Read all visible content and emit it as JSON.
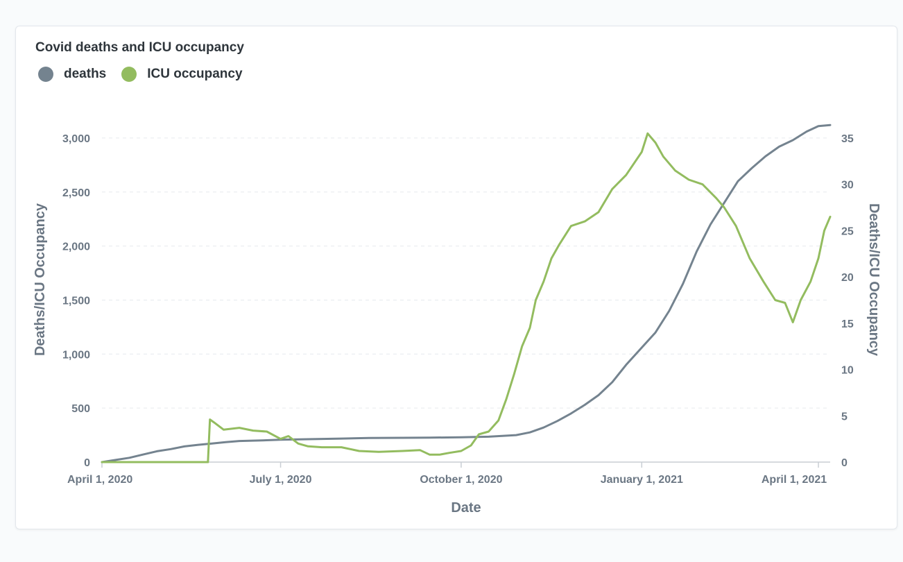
{
  "chart_data": {
    "type": "line",
    "title": "Covid deaths and ICU occupancy",
    "xlabel": "Date",
    "ylabel_left": "Deaths/ICU Occupancy",
    "ylabel_right": "Deaths/ICU Occupancy",
    "x_range": [
      "2020-04-01",
      "2021-04-07"
    ],
    "x_ticks": [
      {
        "date": "2020-04-01",
        "label": "April 1, 2020"
      },
      {
        "date": "2020-07-01",
        "label": "July 1, 2020"
      },
      {
        "date": "2020-10-01",
        "label": "October 1, 2020"
      },
      {
        "date": "2021-01-01",
        "label": "January 1, 2021"
      },
      {
        "date": "2021-04-01",
        "label": "April 1, 2021"
      }
    ],
    "y_left": {
      "range": [
        0,
        3250
      ],
      "ticks": [
        0,
        500,
        1000,
        1500,
        2000,
        2500,
        3000
      ],
      "labels": [
        "0",
        "500",
        "1,000",
        "1,500",
        "2,000",
        "2,500",
        "3,000"
      ]
    },
    "y_right": {
      "range": [
        0,
        37.92
      ],
      "ticks": [
        0,
        5,
        10,
        15,
        20,
        25,
        30,
        35
      ],
      "labels": [
        "0",
        "5",
        "10",
        "15",
        "20",
        "25",
        "30",
        "35"
      ]
    },
    "grid": true,
    "legend_position": "top-left",
    "series": [
      {
        "name": "deaths",
        "axis": "left",
        "color": "#74838f",
        "points": [
          [
            "2020-04-01",
            0
          ],
          [
            "2020-04-08",
            20
          ],
          [
            "2020-04-15",
            40
          ],
          [
            "2020-04-22",
            70
          ],
          [
            "2020-04-29",
            100
          ],
          [
            "2020-05-06",
            120
          ],
          [
            "2020-05-13",
            145
          ],
          [
            "2020-05-20",
            160
          ],
          [
            "2020-05-27",
            172
          ],
          [
            "2020-06-03",
            185
          ],
          [
            "2020-06-10",
            195
          ],
          [
            "2020-06-20",
            200
          ],
          [
            "2020-07-01",
            207
          ],
          [
            "2020-07-15",
            212
          ],
          [
            "2020-08-01",
            218
          ],
          [
            "2020-08-15",
            223
          ],
          [
            "2020-09-01",
            225
          ],
          [
            "2020-09-15",
            227
          ],
          [
            "2020-10-01",
            229
          ],
          [
            "2020-10-15",
            235
          ],
          [
            "2020-10-29",
            250
          ],
          [
            "2020-11-05",
            275
          ],
          [
            "2020-11-12",
            320
          ],
          [
            "2020-11-19",
            380
          ],
          [
            "2020-11-26",
            450
          ],
          [
            "2020-12-03",
            530
          ],
          [
            "2020-12-10",
            620
          ],
          [
            "2020-12-17",
            740
          ],
          [
            "2020-12-24",
            900
          ],
          [
            "2021-01-01",
            1060
          ],
          [
            "2021-01-08",
            1200
          ],
          [
            "2021-01-15",
            1400
          ],
          [
            "2021-01-22",
            1650
          ],
          [
            "2021-01-29",
            1950
          ],
          [
            "2021-02-05",
            2200
          ],
          [
            "2021-02-12",
            2400
          ],
          [
            "2021-02-19",
            2600
          ],
          [
            "2021-02-26",
            2720
          ],
          [
            "2021-03-05",
            2830
          ],
          [
            "2021-03-12",
            2920
          ],
          [
            "2021-03-19",
            2980
          ],
          [
            "2021-03-26",
            3060
          ],
          [
            "2021-04-01",
            3110
          ],
          [
            "2021-04-07",
            3120
          ]
        ]
      },
      {
        "name": "ICU occupancy",
        "axis": "right",
        "color": "#93bc5f",
        "points": [
          [
            "2020-04-01",
            0
          ],
          [
            "2020-05-25",
            0
          ],
          [
            "2020-05-26",
            4.6
          ],
          [
            "2020-05-28",
            4.3
          ],
          [
            "2020-06-02",
            3.5
          ],
          [
            "2020-06-10",
            3.7
          ],
          [
            "2020-06-17",
            3.4
          ],
          [
            "2020-06-24",
            3.3
          ],
          [
            "2020-07-01",
            2.5
          ],
          [
            "2020-07-05",
            2.8
          ],
          [
            "2020-07-10",
            2.0
          ],
          [
            "2020-07-15",
            1.7
          ],
          [
            "2020-07-22",
            1.6
          ],
          [
            "2020-08-01",
            1.6
          ],
          [
            "2020-08-10",
            1.2
          ],
          [
            "2020-08-20",
            1.1
          ],
          [
            "2020-09-01",
            1.2
          ],
          [
            "2020-09-10",
            1.3
          ],
          [
            "2020-09-15",
            0.8
          ],
          [
            "2020-09-20",
            0.8
          ],
          [
            "2020-09-25",
            1.0
          ],
          [
            "2020-10-01",
            1.2
          ],
          [
            "2020-10-06",
            1.8
          ],
          [
            "2020-10-10",
            3.0
          ],
          [
            "2020-10-15",
            3.3
          ],
          [
            "2020-10-20",
            4.5
          ],
          [
            "2020-10-24",
            6.8
          ],
          [
            "2020-10-28",
            9.5
          ],
          [
            "2020-11-01",
            12.5
          ],
          [
            "2020-11-05",
            14.5
          ],
          [
            "2020-11-08",
            17.5
          ],
          [
            "2020-11-12",
            19.5
          ],
          [
            "2020-11-16",
            22.0
          ],
          [
            "2020-11-20",
            23.5
          ],
          [
            "2020-11-26",
            25.5
          ],
          [
            "2020-12-03",
            26.0
          ],
          [
            "2020-12-10",
            27.0
          ],
          [
            "2020-12-17",
            29.5
          ],
          [
            "2020-12-24",
            31.0
          ],
          [
            "2021-01-01",
            33.5
          ],
          [
            "2021-01-04",
            35.5
          ],
          [
            "2021-01-08",
            34.5
          ],
          [
            "2021-01-12",
            33.0
          ],
          [
            "2021-01-18",
            31.5
          ],
          [
            "2021-01-25",
            30.5
          ],
          [
            "2021-02-01",
            30.0
          ],
          [
            "2021-02-08",
            28.5
          ],
          [
            "2021-02-12",
            27.5
          ],
          [
            "2021-02-18",
            25.5
          ],
          [
            "2021-02-25",
            22.0
          ],
          [
            "2021-03-04",
            19.5
          ],
          [
            "2021-03-10",
            17.5
          ],
          [
            "2021-03-15",
            17.2
          ],
          [
            "2021-03-19",
            15.1
          ],
          [
            "2021-03-23",
            17.5
          ],
          [
            "2021-03-28",
            19.5
          ],
          [
            "2021-04-01",
            22.0
          ],
          [
            "2021-04-04",
            25.0
          ],
          [
            "2021-04-07",
            26.5
          ]
        ]
      }
    ]
  }
}
